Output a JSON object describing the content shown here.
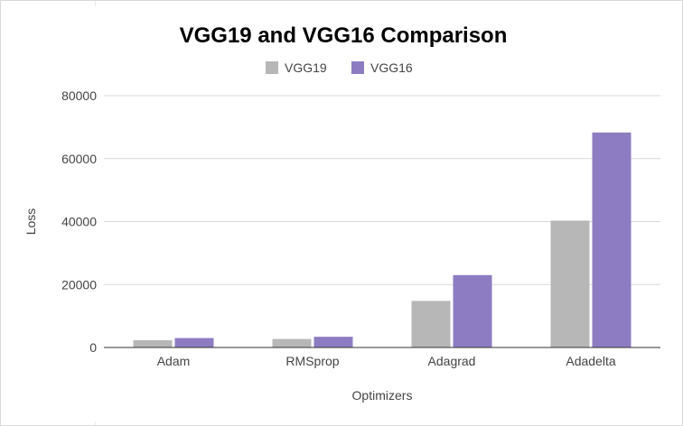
{
  "chart_data": {
    "type": "bar",
    "title": "VGG19 and VGG16 Comparison",
    "xlabel": "Optimizers",
    "ylabel": "Loss",
    "categories": [
      "Adam",
      "RMSprop",
      "Adagrad",
      "Adadelta"
    ],
    "series": [
      {
        "name": "VGG19",
        "color": "#b7b7b7",
        "values": [
          2300,
          2700,
          14800,
          40300
        ]
      },
      {
        "name": "VGG16",
        "color": "#8e7cc3",
        "values": [
          3000,
          3400,
          23000,
          68300
        ]
      }
    ],
    "ylim": [
      0,
      80000
    ],
    "yticks": [
      "0",
      "20000",
      "40000",
      "60000",
      "80000"
    ],
    "grid": true,
    "legend_position": "top-center"
  }
}
